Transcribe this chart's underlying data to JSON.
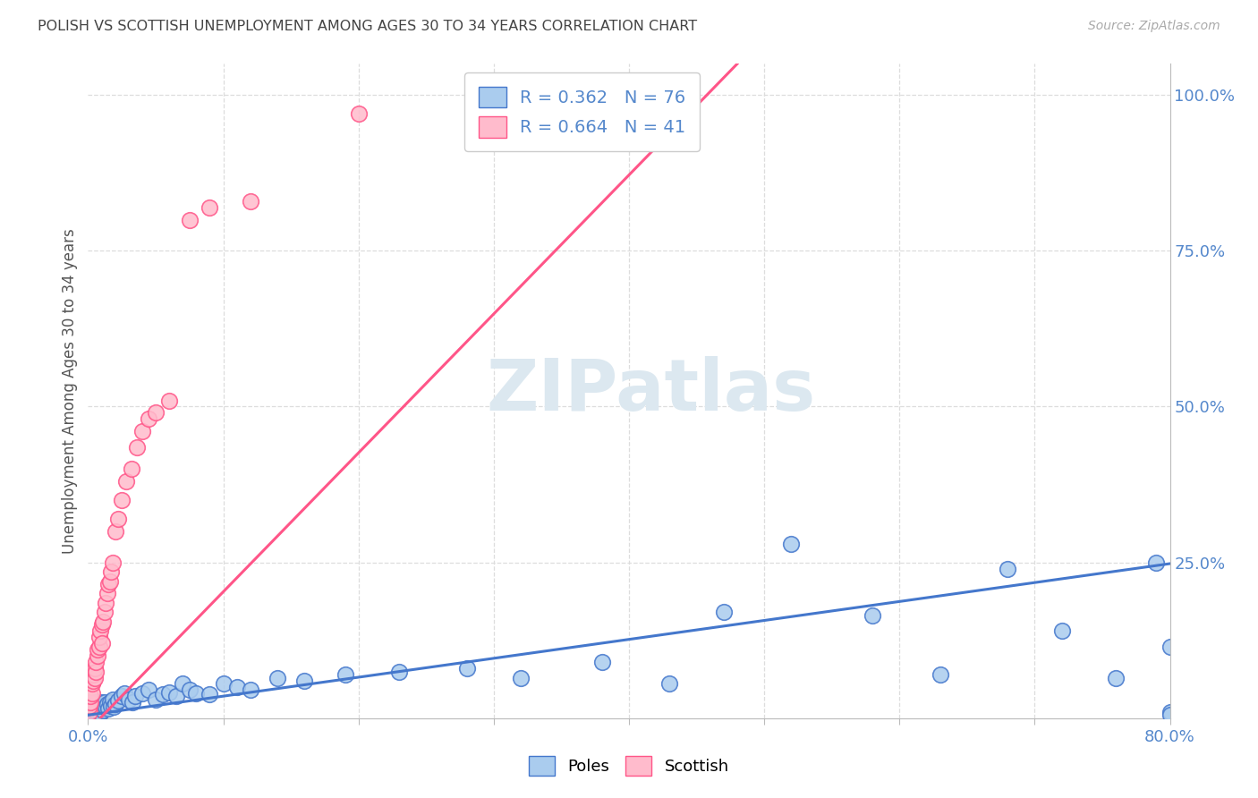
{
  "title": "POLISH VS SCOTTISH UNEMPLOYMENT AMONG AGES 30 TO 34 YEARS CORRELATION CHART",
  "source": "Source: ZipAtlas.com",
  "ylabel": "Unemployment Among Ages 30 to 34 years",
  "xmin": 0.0,
  "xmax": 0.8,
  "ymin": 0.0,
  "ymax": 1.05,
  "blue_color": "#AACCEE",
  "pink_color": "#FFBBCC",
  "blue_line_color": "#4477CC",
  "pink_line_color": "#FF5588",
  "R_blue": "0.362",
  "N_blue": "76",
  "R_pink": "0.664",
  "N_pink": "41",
  "watermark": "ZIPatlas",
  "background_color": "#FFFFFF",
  "grid_color": "#DDDDDD",
  "label_color": "#5588CC",
  "title_color": "#444444",
  "poles_x": [
    0.001,
    0.001,
    0.002,
    0.002,
    0.002,
    0.003,
    0.003,
    0.003,
    0.004,
    0.004,
    0.004,
    0.005,
    0.005,
    0.005,
    0.006,
    0.006,
    0.006,
    0.007,
    0.007,
    0.007,
    0.008,
    0.008,
    0.008,
    0.009,
    0.009,
    0.01,
    0.01,
    0.011,
    0.011,
    0.012,
    0.013,
    0.014,
    0.015,
    0.016,
    0.017,
    0.018,
    0.019,
    0.02,
    0.022,
    0.025,
    0.027,
    0.03,
    0.033,
    0.035,
    0.04,
    0.045,
    0.05,
    0.055,
    0.06,
    0.065,
    0.07,
    0.075,
    0.08,
    0.09,
    0.1,
    0.11,
    0.12,
    0.14,
    0.16,
    0.19,
    0.23,
    0.28,
    0.32,
    0.38,
    0.43,
    0.47,
    0.52,
    0.58,
    0.63,
    0.68,
    0.72,
    0.76,
    0.79,
    0.8,
    0.8,
    0.8
  ],
  "poles_y": [
    0.008,
    0.012,
    0.006,
    0.015,
    0.01,
    0.02,
    0.008,
    0.014,
    0.018,
    0.005,
    0.012,
    0.008,
    0.016,
    0.022,
    0.01,
    0.015,
    0.025,
    0.012,
    0.018,
    0.008,
    0.02,
    0.01,
    0.015,
    0.018,
    0.008,
    0.015,
    0.025,
    0.012,
    0.02,
    0.025,
    0.018,
    0.022,
    0.015,
    0.025,
    0.02,
    0.03,
    0.018,
    0.022,
    0.028,
    0.035,
    0.04,
    0.03,
    0.025,
    0.035,
    0.04,
    0.045,
    0.03,
    0.038,
    0.042,
    0.035,
    0.055,
    0.045,
    0.04,
    0.038,
    0.055,
    0.05,
    0.045,
    0.065,
    0.06,
    0.07,
    0.075,
    0.08,
    0.065,
    0.09,
    0.055,
    0.17,
    0.28,
    0.165,
    0.07,
    0.24,
    0.14,
    0.065,
    0.25,
    0.01,
    0.115,
    0.005
  ],
  "scottish_x": [
    0.001,
    0.001,
    0.002,
    0.002,
    0.003,
    0.003,
    0.004,
    0.004,
    0.005,
    0.005,
    0.006,
    0.006,
    0.007,
    0.007,
    0.008,
    0.008,
    0.009,
    0.01,
    0.01,
    0.011,
    0.012,
    0.013,
    0.014,
    0.015,
    0.016,
    0.017,
    0.018,
    0.02,
    0.022,
    0.025,
    0.028,
    0.032,
    0.036,
    0.04,
    0.045,
    0.05,
    0.06,
    0.075,
    0.09,
    0.12,
    0.2
  ],
  "scottish_y": [
    0.01,
    0.02,
    0.025,
    0.035,
    0.04,
    0.055,
    0.06,
    0.07,
    0.065,
    0.08,
    0.075,
    0.09,
    0.1,
    0.11,
    0.115,
    0.13,
    0.14,
    0.12,
    0.15,
    0.155,
    0.17,
    0.185,
    0.2,
    0.215,
    0.22,
    0.235,
    0.25,
    0.3,
    0.32,
    0.35,
    0.38,
    0.4,
    0.435,
    0.46,
    0.48,
    0.49,
    0.51,
    0.8,
    0.82,
    0.83,
    0.97
  ],
  "blue_trend_x": [
    0.0,
    0.8
  ],
  "blue_trend_y": [
    0.005,
    0.248
  ],
  "pink_trend_x": [
    0.0,
    0.48
  ],
  "pink_trend_y": [
    -0.02,
    1.05
  ]
}
